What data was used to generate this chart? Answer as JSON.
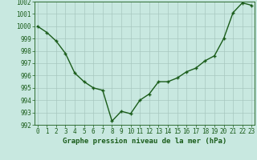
{
  "x": [
    0,
    1,
    2,
    3,
    4,
    5,
    6,
    7,
    8,
    9,
    10,
    11,
    12,
    13,
    14,
    15,
    16,
    17,
    18,
    19,
    20,
    21,
    22,
    23
  ],
  "y": [
    1000.0,
    999.5,
    998.8,
    997.8,
    996.2,
    995.5,
    995.0,
    994.8,
    992.3,
    993.1,
    992.9,
    994.0,
    994.5,
    995.5,
    995.5,
    995.8,
    996.3,
    996.6,
    997.2,
    997.6,
    999.0,
    1001.1,
    1001.9,
    1001.7
  ],
  "line_color": "#1a5c1a",
  "marker_color": "#1a5c1a",
  "bg_color": "#c8e8e0",
  "grid_color": "#a8c8c0",
  "ylim": [
    992,
    1002
  ],
  "yticks": [
    992,
    993,
    994,
    995,
    996,
    997,
    998,
    999,
    1000,
    1001,
    1002
  ],
  "xlabel": "Graphe pression niveau de la mer (hPa)",
  "xlabel_fontsize": 6.5,
  "tick_fontsize": 5.5,
  "line_width": 1.0
}
